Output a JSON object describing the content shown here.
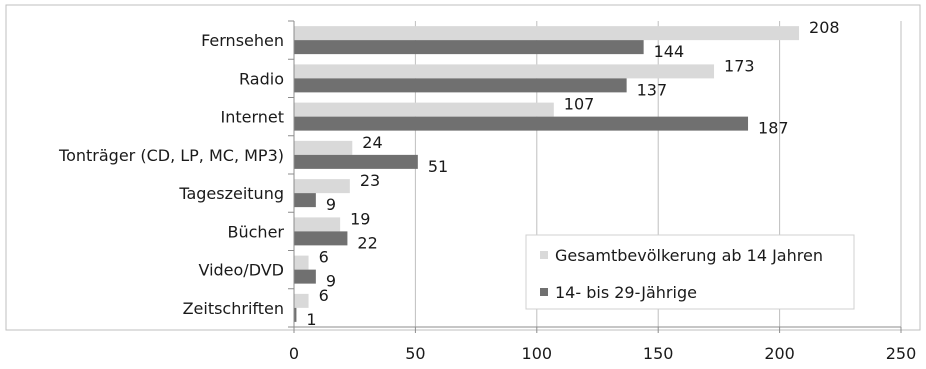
{
  "chart_data": {
    "type": "bar",
    "orientation": "horizontal",
    "categories": [
      "Fernsehen",
      "Radio",
      "Internet",
      "Tonträger (CD, LP, MC, MP3)",
      "Tageszeitung",
      "Bücher",
      "Video/DVD",
      "Zeitschriften"
    ],
    "series": [
      {
        "name": "Gesamtbevölkerung ab 14 Jahren",
        "values": [
          208,
          173,
          107,
          24,
          23,
          19,
          6,
          6
        ],
        "color": "#d9d9d9"
      },
      {
        "name": "14- bis 29-Jährige",
        "values": [
          144,
          137,
          187,
          51,
          9,
          22,
          9,
          1
        ],
        "color": "#707070"
      }
    ],
    "xlim": [
      0,
      250
    ],
    "xticks": [
      0,
      50,
      100,
      150,
      200,
      250
    ],
    "grid": true,
    "legend_position": "bottom-right",
    "title": "",
    "xlabel": "",
    "ylabel": ""
  }
}
